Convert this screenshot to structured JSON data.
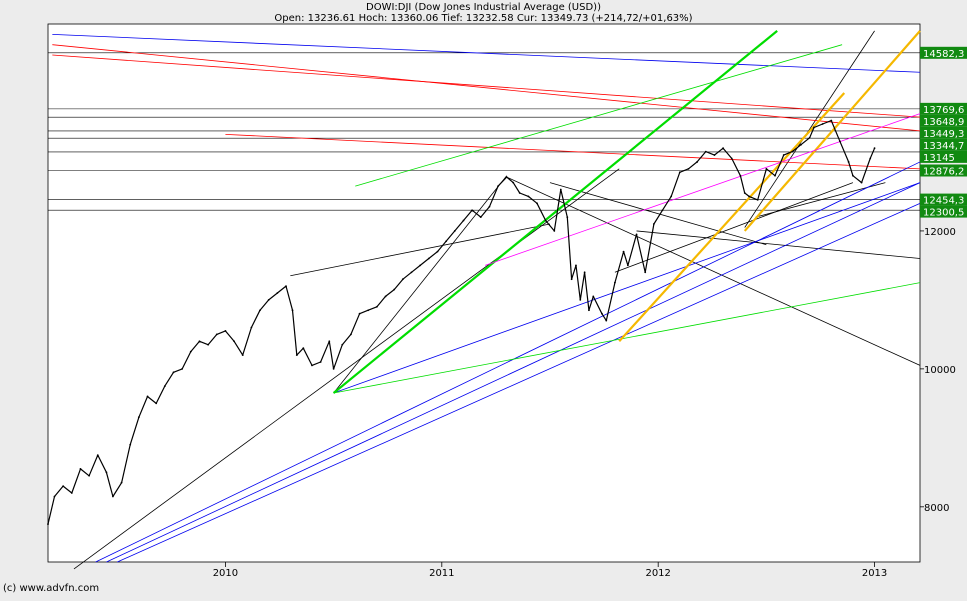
{
  "header": {
    "title": "DOWI:DJI (Dow Jones Industrial Average (USD))",
    "quote": "Open: 13236.61 Hoch: 13360.06 Tief: 13232.58 Cur: 13349.73 (+214,72/+01,63%)"
  },
  "footer": {
    "copyright": "(c) www.advfn.com"
  },
  "colors": {
    "background": "#ececec",
    "plot": "#ffffff",
    "price": "#000000",
    "badge": "#118a11",
    "lines": {
      "black": "#000000",
      "red": "#ff0000",
      "blue": "#0000ee",
      "green": "#00dd00",
      "orange": "#f5b800",
      "magenta": "#ff00ff"
    }
  },
  "chart_data": {
    "type": "line",
    "title": "DOWI:DJI (Dow Jones Industrial Average (USD))",
    "xlabel": "",
    "ylabel": "",
    "xlim": [
      2009.18,
      2013.21
    ],
    "ylim": [
      7200,
      15000
    ],
    "x_ticks": [
      "2010",
      "2011",
      "2012",
      "2013"
    ],
    "y_ticks": [
      8000,
      10000,
      12000
    ],
    "price_levels": [
      "14582,3",
      "13769,6",
      "13648,9",
      "13449,3",
      "13344,7",
      "13145",
      "12876,2",
      "12454,3",
      "12300,5"
    ],
    "grid": false,
    "series": [
      {
        "x": [
          2009.18,
          2009.21,
          2009.25,
          2009.29,
          2009.33,
          2009.37,
          2009.41,
          2009.45,
          2009.48,
          2009.52,
          2009.56,
          2009.6,
          2009.64,
          2009.68,
          2009.72,
          2009.76,
          2009.8,
          2009.84,
          2009.88,
          2009.92,
          2009.96,
          2010.0,
          2010.04,
          2010.08,
          2010.12,
          2010.16,
          2010.2,
          2010.24,
          2010.28,
          2010.31,
          2010.33,
          2010.36,
          2010.4,
          2010.44,
          2010.48,
          2010.5,
          2010.54,
          2010.58,
          2010.62,
          2010.66,
          2010.7,
          2010.74,
          2010.78,
          2010.82,
          2010.86,
          2010.9,
          2010.94,
          2010.98,
          2011.02,
          2011.06,
          2011.1,
          2011.14,
          2011.18,
          2011.22,
          2011.26,
          2011.3,
          2011.33,
          2011.36,
          2011.4,
          2011.44,
          2011.48,
          2011.52,
          2011.55,
          2011.58,
          2011.6,
          2011.62,
          2011.64,
          2011.66,
          2011.68,
          2011.7,
          2011.74,
          2011.76,
          2011.8,
          2011.84,
          2011.86,
          2011.9,
          2011.94,
          2011.98,
          2012.02,
          2012.06,
          2012.1,
          2012.14,
          2012.18,
          2012.22,
          2012.26,
          2012.3,
          2012.34,
          2012.38,
          2012.4,
          2012.42,
          2012.46,
          2012.5,
          2012.54,
          2012.58,
          2012.62,
          2012.66,
          2012.7,
          2012.72,
          2012.76,
          2012.8,
          2012.84,
          2012.88,
          2012.9,
          2012.94,
          2012.98,
          2013.0
        ],
        "y": [
          7750,
          8150,
          8300,
          8200,
          8550,
          8450,
          8750,
          8500,
          8150,
          8350,
          8900,
          9300,
          9600,
          9500,
          9750,
          9950,
          10000,
          10250,
          10400,
          10350,
          10500,
          10550,
          10400,
          10200,
          10600,
          10850,
          11000,
          11100,
          11200,
          10850,
          10200,
          10300,
          10050,
          10100,
          10400,
          10000,
          10350,
          10500,
          10800,
          10850,
          10900,
          11050,
          11150,
          11300,
          11400,
          11500,
          11600,
          11700,
          11850,
          12000,
          12150,
          12300,
          12200,
          12350,
          12650,
          12780,
          12700,
          12550,
          12500,
          12400,
          12150,
          12000,
          12600,
          12200,
          11300,
          11500,
          11000,
          11400,
          10850,
          11050,
          10800,
          10700,
          11250,
          11700,
          11500,
          11950,
          11400,
          12100,
          12300,
          12500,
          12850,
          12900,
          13000,
          13150,
          13100,
          13200,
          13050,
          12800,
          12550,
          12500,
          12450,
          12900,
          12800,
          13100,
          13150,
          13250,
          13350,
          13500,
          13550,
          13600,
          13300,
          13000,
          12800,
          12700,
          13050,
          13200
        ]
      }
    ]
  }
}
